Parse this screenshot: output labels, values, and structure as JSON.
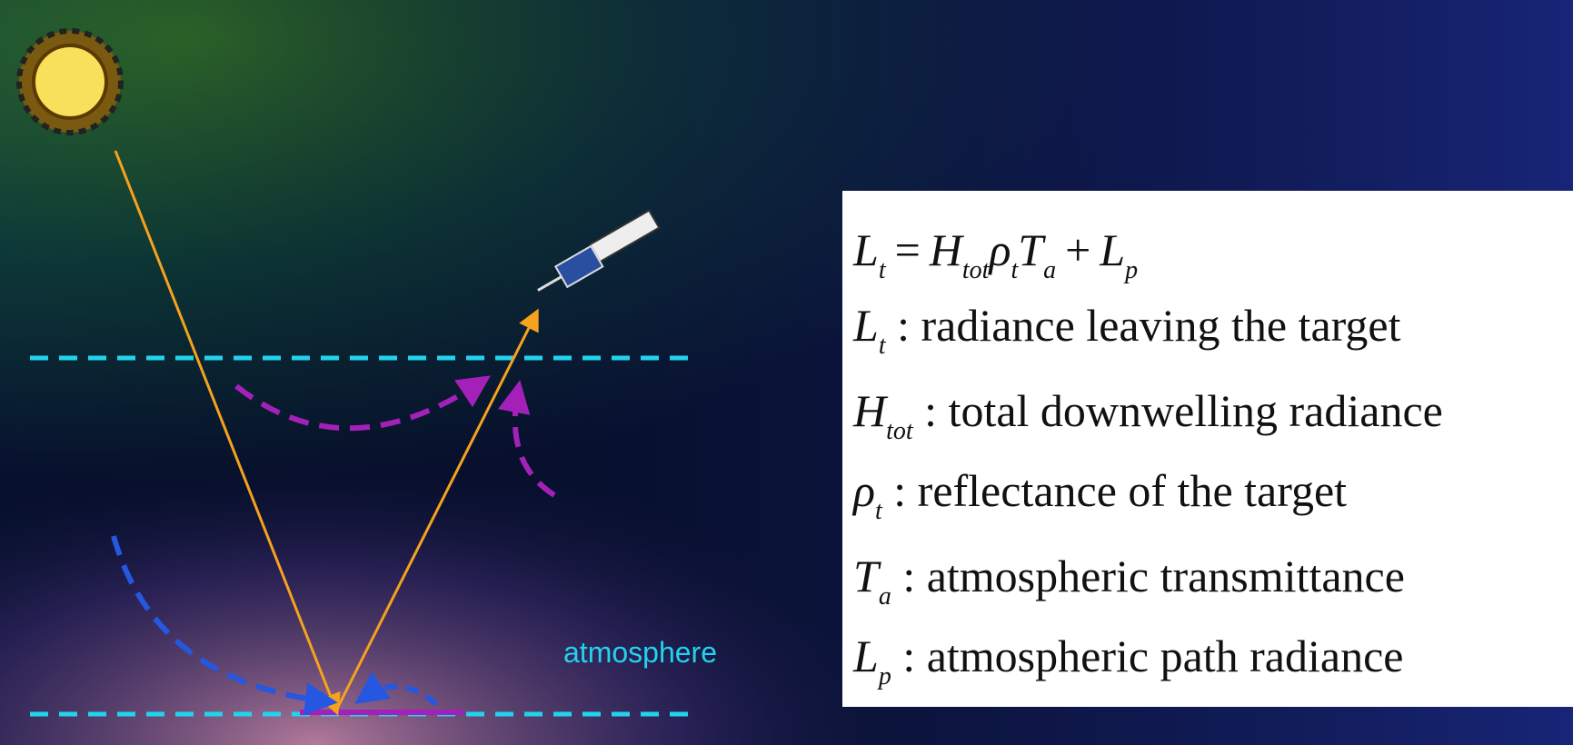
{
  "label": "atmosphere",
  "equation": [
    {
      "text": "L",
      "sub": "t"
    },
    {
      "text": "="
    },
    {
      "text": "H",
      "sub": "tot"
    },
    {
      "text": "ρ",
      "sub": "t"
    },
    {
      "text": "T",
      "sub": "a"
    },
    {
      "text": "+"
    },
    {
      "text": "L",
      "sub": "p"
    }
  ],
  "definitions": [
    {
      "symbol": "L",
      "sub": "t",
      "text": ": radiance leaving the target"
    },
    {
      "symbol": "H",
      "sub": "tot",
      "text": ": total downwelling radiance"
    },
    {
      "symbol": "ρ",
      "sub": "t",
      "text": ": reflectance of the target"
    },
    {
      "symbol": "T",
      "sub": "a",
      "text": ": atmospheric transmittance"
    },
    {
      "symbol": "L",
      "sub": "p",
      "text": ": atmospheric path radiance"
    }
  ]
}
